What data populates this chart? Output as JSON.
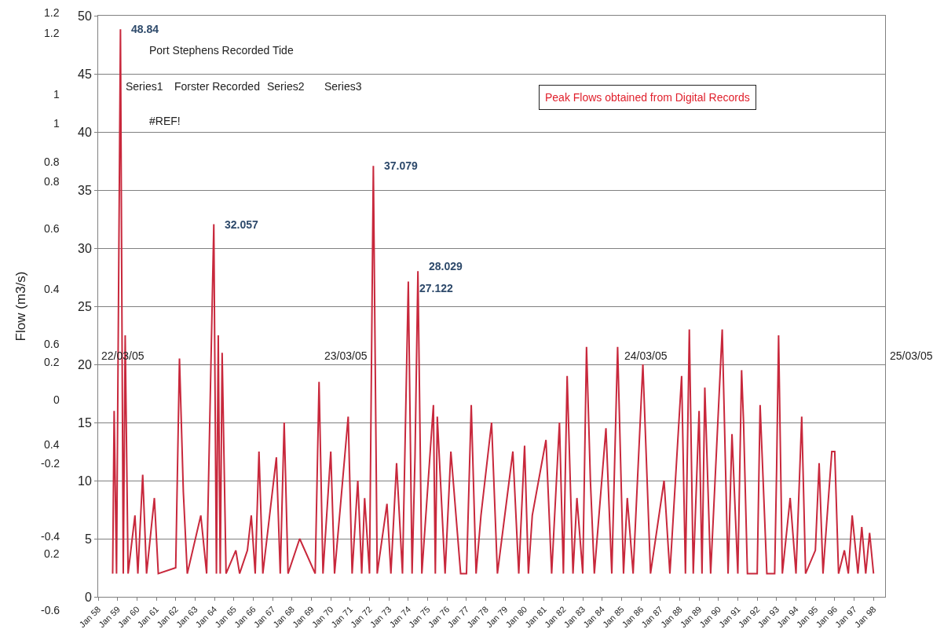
{
  "chart_data": {
    "type": "line",
    "ylabel": "Flow (m3/s)",
    "xlim": [
      "1958-01-01",
      "1998-08-07"
    ],
    "ylim": [
      0,
      50
    ],
    "yticks": [
      0,
      5,
      10,
      15,
      20,
      25,
      30,
      35,
      40,
      45,
      50
    ],
    "xticks": [
      {
        "value": "1958-01-01",
        "label": "Jan 58"
      },
      {
        "value": "1959-01-01",
        "label": "Jan 59"
      },
      {
        "value": "1960-01-01",
        "label": "Jan 60"
      },
      {
        "value": "1961-01-01",
        "label": "Jan 61"
      },
      {
        "value": "1962-01-01",
        "label": "Jan 62"
      },
      {
        "value": "1963-01-01",
        "label": "Jan 63"
      },
      {
        "value": "1964-01-01",
        "label": "Jan 64"
      },
      {
        "value": "1965-01-01",
        "label": "Jan 65"
      },
      {
        "value": "1966-01-01",
        "label": "Jan 66"
      },
      {
        "value": "1967-01-01",
        "label": "Jan 67"
      },
      {
        "value": "1968-01-01",
        "label": "Jan 68"
      },
      {
        "value": "1969-01-01",
        "label": "Jan 69"
      },
      {
        "value": "1970-01-01",
        "label": "Jan 70"
      },
      {
        "value": "1971-01-01",
        "label": "Jan 71"
      },
      {
        "value": "1972-01-01",
        "label": "Jan 72"
      },
      {
        "value": "1973-01-01",
        "label": "Jan 73"
      },
      {
        "value": "1974-01-01",
        "label": "Jan 74"
      },
      {
        "value": "1975-01-01",
        "label": "Jan 75"
      },
      {
        "value": "1976-01-01",
        "label": "Jan 76"
      },
      {
        "value": "1977-01-01",
        "label": "Jan 77"
      },
      {
        "value": "1978-01-01",
        "label": "Jan 78"
      },
      {
        "value": "1979-01-01",
        "label": "Jan 79"
      },
      {
        "value": "1980-01-01",
        "label": "Jan 80"
      },
      {
        "value": "1981-01-01",
        "label": "Jan 81"
      },
      {
        "value": "1982-01-01",
        "label": "Jan 82"
      },
      {
        "value": "1983-01-01",
        "label": "Jan 83"
      },
      {
        "value": "1984-01-01",
        "label": "Jan 84"
      },
      {
        "value": "1985-01-01",
        "label": "Jan 85"
      },
      {
        "value": "1986-01-01",
        "label": "Jan 86"
      },
      {
        "value": "1987-01-01",
        "label": "Jan 87"
      },
      {
        "value": "1988-01-01",
        "label": "Jan 88"
      },
      {
        "value": "1989-01-01",
        "label": "Jan 89"
      },
      {
        "value": "1990-01-01",
        "label": "Jan 90"
      },
      {
        "value": "1991-01-01",
        "label": "Jan 91"
      },
      {
        "value": "1992-01-01",
        "label": "Jan 92"
      },
      {
        "value": "1993-01-01",
        "label": "Jan 93"
      },
      {
        "value": "1994-01-01",
        "label": "Jan 94"
      },
      {
        "value": "1995-01-01",
        "label": "Jan 95"
      },
      {
        "value": "1996-01-01",
        "label": "Jan 96"
      },
      {
        "value": "1997-01-01",
        "label": "Jan 97"
      },
      {
        "value": "1998-01-01",
        "label": "Jan 98"
      }
    ],
    "grid": "y",
    "marker": "none",
    "line_style": "solid",
    "series": [
      {
        "color": "#c8283c",
        "x": [
          "1958-10-01",
          "1958-10-29",
          "1958-12-13",
          "1959-02-25",
          "1959-04-19",
          "1959-05-25",
          "1959-07-19",
          "1959-11-25",
          "1960-01-19",
          "1960-04-19",
          "1960-07-01",
          "1960-11-25",
          "1961-02-07",
          "1962-01-01",
          "1962-03-13",
          "1962-05-25",
          "1962-08-07",
          "1963-04-19",
          "1963-08-07",
          "1963-12-20",
          "1964-02-07",
          "1964-03-13",
          "1964-04-19",
          "1964-05-25",
          "1964-08-07",
          "1965-02-07",
          "1965-04-19",
          "1965-09-13",
          "1965-11-25",
          "1966-02-07",
          "1966-04-19",
          "1966-07-01",
          "1967-03-13",
          "1967-05-25",
          "1967-08-07",
          "1967-10-19",
          "1968-05-25",
          "1969-03-13",
          "1969-05-25",
          "1969-08-07",
          "1970-01-01",
          "1970-03-13",
          "1970-11-25",
          "1971-02-07",
          "1971-05-25",
          "1971-08-07",
          "1971-10-01",
          "1972-01-01",
          "1972-03-13",
          "1972-05-25",
          "1972-11-25",
          "1973-02-07",
          "1973-05-25",
          "1973-09-13",
          "1974-01-01",
          "1974-03-13",
          "1974-05-07",
          "1974-07-01",
          "1974-09-13",
          "1975-04-19",
          "1975-05-25",
          "1975-07-01",
          "1975-11-25",
          "1976-03-13",
          "1976-09-13",
          "1977-01-01",
          "1977-04-01",
          "1977-07-01",
          "1977-10-01",
          "1978-04-19",
          "1978-08-07",
          "1979-05-25",
          "1979-09-13",
          "1980-01-01",
          "1980-03-13",
          "1980-05-25",
          "1981-02-07",
          "1981-05-25",
          "1981-10-19",
          "1982-01-01",
          "1982-03-13",
          "1982-07-01",
          "1982-09-13",
          "1983-01-01",
          "1983-03-13",
          "1983-05-25",
          "1983-08-07",
          "1984-03-13",
          "1984-07-01",
          "1984-10-19",
          "1985-02-07",
          "1985-04-19",
          "1985-08-07",
          "1986-02-07",
          "1986-07-01",
          "1987-03-13",
          "1987-07-01",
          "1988-02-07",
          "1988-04-19",
          "1988-07-01",
          "1988-09-13",
          "1989-01-01",
          "1989-02-25",
          "1989-04-19",
          "1989-08-07",
          "1990-03-13",
          "1990-07-01",
          "1990-09-13",
          "1991-01-01",
          "1991-03-13",
          "1991-04-19",
          "1991-07-01",
          "1992-01-01",
          "1992-02-25",
          "1992-07-01",
          "1992-11-25",
          "1993-01-01",
          "1993-02-07",
          "1993-04-19",
          "1993-09-13",
          "1994-01-01",
          "1994-04-19",
          "1994-07-01",
          "1995-01-01",
          "1995-03-13",
          "1995-05-25",
          "1995-11-07",
          "1996-01-01",
          "1996-03-13",
          "1996-07-01",
          "1996-09-13",
          "1996-11-25",
          "1997-03-13",
          "1997-05-25",
          "1997-08-07",
          "1997-10-19",
          "1998-01-01"
        ],
        "values": [
          2,
          16,
          2,
          48.84,
          2,
          22.5,
          2,
          7,
          2,
          10.5,
          2,
          8.5,
          2,
          2.5,
          20.5,
          9,
          2,
          7,
          2,
          32.057,
          2,
          22.5,
          2,
          21,
          2,
          4,
          2,
          4,
          7,
          2,
          12.5,
          2,
          12,
          2,
          15,
          2,
          5,
          2,
          18.5,
          2,
          12.5,
          2,
          15.5,
          2,
          10,
          2,
          8.5,
          2,
          37.079,
          2,
          8,
          2,
          11.5,
          2,
          27.122,
          2,
          12,
          28.029,
          2,
          16.5,
          2,
          15.5,
          2,
          12.5,
          2,
          2,
          16.5,
          2,
          7,
          15,
          2,
          12.5,
          2,
          13,
          2,
          7,
          13.5,
          2,
          15,
          2,
          19,
          2,
          8.5,
          2,
          21.5,
          10,
          2,
          14.5,
          2,
          21.5,
          2,
          8.5,
          2,
          20,
          2,
          10,
          2,
          19,
          2,
          23,
          2,
          16,
          2,
          18,
          2,
          23,
          2,
          14,
          2,
          19.5,
          15,
          2,
          2,
          16.5,
          2,
          2,
          11,
          22.5,
          2,
          8.5,
          2,
          15.5,
          2,
          4,
          11.5,
          2,
          12.5,
          12.5,
          2,
          4,
          2,
          7,
          2,
          6,
          2,
          5.5,
          2
        ]
      }
    ],
    "annotations": [
      {
        "text": "48.84",
        "x": "1959-02-25",
        "y": 48.84
      },
      {
        "text": "32.057",
        "x": "1963-12-20",
        "y": 32.057
      },
      {
        "text": "37.079",
        "x": "1972-03-13",
        "y": 37.079
      },
      {
        "text": "28.029",
        "x": "1974-07-01",
        "y": 28.029
      },
      {
        "text": "27.122",
        "x": "1974-01-01",
        "y": 27.122
      },
      "Port Stephens Recorded Tide",
      "Series1",
      "Forster Recorded",
      "Series2",
      "Series3",
      "#REF!",
      "Peak Flows obtained from Digital Records",
      "22/03/05",
      "23/03/05",
      "24/03/05",
      "25/03/05",
      "1.2",
      "1.2",
      "1",
      "1",
      "0.8",
      "0.8",
      "0.6",
      "0.4",
      "0.6",
      "0.2",
      "0",
      "0.4",
      "-0.2",
      "-0.4",
      "0.2",
      "-0.6"
    ]
  }
}
